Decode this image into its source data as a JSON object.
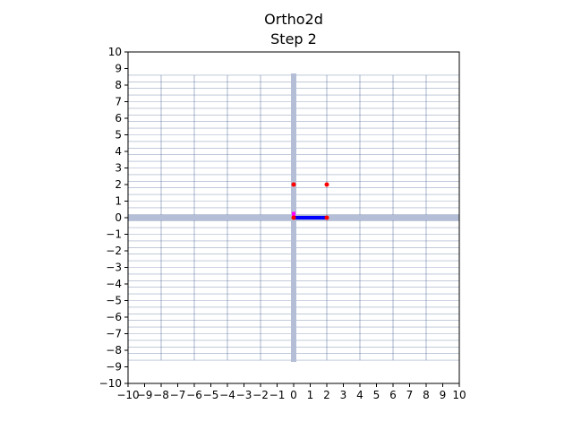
{
  "chart_data": {
    "type": "scatter",
    "title": "Ortho2d",
    "subtitle": "Step 2",
    "xlabel": "",
    "ylabel": "",
    "xlim": [
      -10,
      10
    ],
    "ylim": [
      -10,
      10
    ],
    "x_ticks": [
      -10,
      -9,
      -8,
      -7,
      -6,
      -5,
      -4,
      -3,
      -2,
      -1,
      0,
      1,
      2,
      3,
      4,
      5,
      6,
      7,
      8,
      9,
      10
    ],
    "y_ticks": [
      -10,
      -9,
      -8,
      -7,
      -6,
      -5,
      -4,
      -3,
      -2,
      -1,
      0,
      1,
      2,
      3,
      4,
      5,
      6,
      7,
      8,
      9,
      10
    ],
    "x_tick_labels": [
      "−10",
      "−9",
      "−8",
      "−7",
      "−6",
      "−5",
      "−4",
      "−3",
      "−2",
      "−1",
      "0",
      "1",
      "2",
      "3",
      "4",
      "5",
      "6",
      "7",
      "8",
      "9",
      "10"
    ],
    "y_tick_labels": [
      "−10",
      "−9",
      "−8",
      "−7",
      "−6",
      "−5",
      "−4",
      "−3",
      "−2",
      "−1",
      "0",
      "1",
      "2",
      "3",
      "4",
      "5",
      "6",
      "7",
      "8",
      "9",
      "10"
    ],
    "grid": {
      "vertical_lines_x": [
        -8,
        -6,
        -4,
        -2,
        2,
        4,
        6,
        8
      ],
      "vertical_extent_y": [
        -8.6,
        8.6
      ],
      "horizontal_extent_x": [
        -10,
        10
      ],
      "horizontal_range_y": [
        -8.6,
        8.6
      ],
      "horizontal_step": 0.4,
      "axis_line_x": 0,
      "axis_line_y": 0,
      "axis_vertical_extent_y": [
        -8.7,
        8.7
      ],
      "color": "#4a6496",
      "axis_color": "#b4bed6"
    },
    "segments": [
      {
        "x": [
          0,
          2
        ],
        "y": [
          0,
          0
        ],
        "color": "#0000ff"
      },
      {
        "x": [
          0,
          0
        ],
        "y": [
          0,
          0.35
        ],
        "color": "#ff00ff"
      }
    ],
    "points": [
      {
        "x": 0,
        "y": 2,
        "color": "#ff0000"
      },
      {
        "x": 2,
        "y": 2,
        "color": "#ff0000"
      },
      {
        "x": 0,
        "y": 0,
        "color": "#ff0000"
      },
      {
        "x": 2,
        "y": 0,
        "color": "#ff0000"
      }
    ],
    "legend": "none"
  }
}
